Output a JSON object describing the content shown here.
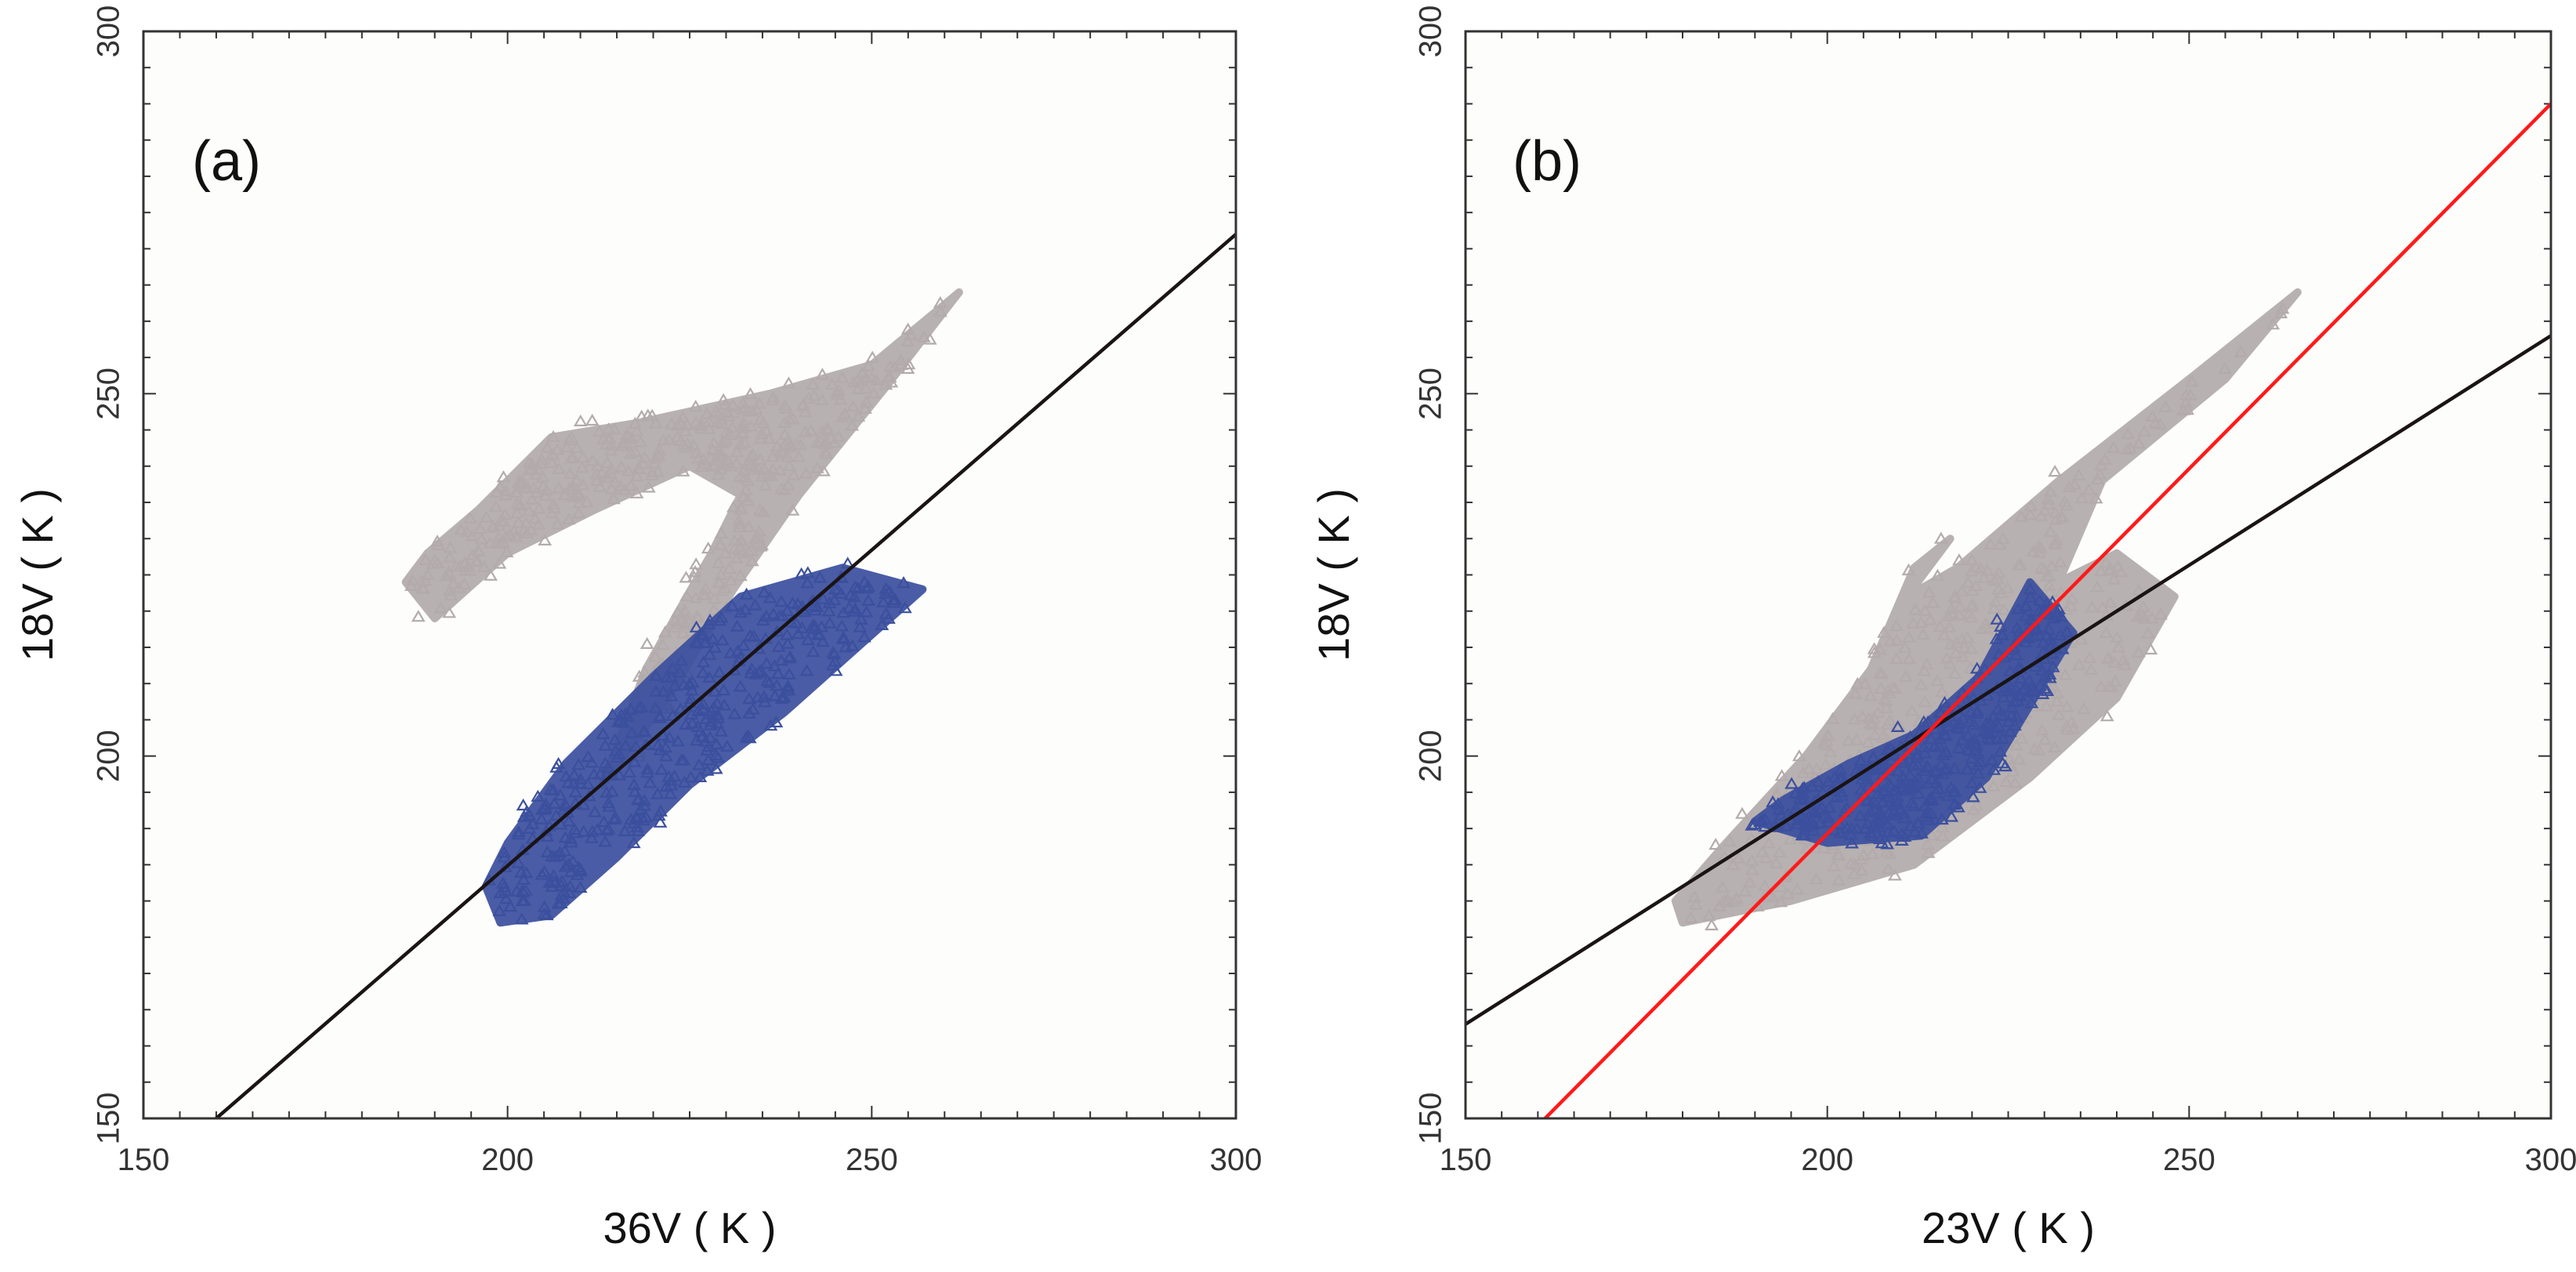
{
  "colors": {
    "gray_points": "#b3abab",
    "blue_points": "#3b4f9e",
    "black_line": "#1a1414",
    "red_line": "#ff1a1a",
    "plot_background": "#fdfdfb",
    "frame": "#333333"
  },
  "chart_data": [
    {
      "type": "scatter",
      "panel_label": "(a)",
      "xlabel": "36V ( K )",
      "ylabel": "18V ( K )",
      "xlim": [
        150,
        300
      ],
      "ylim": [
        150,
        300
      ],
      "xticks": [
        "150",
        "200",
        "250",
        "300"
      ],
      "yticks": [
        "150",
        "200",
        "250",
        "300"
      ],
      "series": [
        {
          "name": "gray triangles",
          "color": "#b3abab",
          "marker": "triangle-open",
          "region": [
            [
              186,
              224
            ],
            [
              190,
              219
            ],
            [
              200,
              228
            ],
            [
              212,
              234
            ],
            [
              225,
              240
            ],
            [
              232,
              236
            ],
            [
              228,
              228
            ],
            [
              219,
              212
            ],
            [
              213,
              196
            ],
            [
              222,
              208
            ],
            [
              231,
              223
            ],
            [
              240,
              236
            ],
            [
              252,
              251
            ],
            [
              262,
              264
            ],
            [
              250,
              254
            ],
            [
              236,
              250
            ],
            [
              218,
              246
            ],
            [
              206,
              244
            ],
            [
              196,
              234
            ],
            [
              189,
              228
            ]
          ]
        },
        {
          "name": "blue triangles",
          "color": "#3b4f9e",
          "marker": "triangle-open",
          "region": [
            [
              199,
              177
            ],
            [
              206,
              178
            ],
            [
              215,
              186
            ],
            [
              225,
              196
            ],
            [
              238,
              206
            ],
            [
              257,
              223
            ],
            [
              246,
              226
            ],
            [
              232,
              222
            ],
            [
              220,
              211
            ],
            [
              208,
              199
            ],
            [
              200,
              188
            ],
            [
              197,
              182
            ]
          ]
        }
      ],
      "lines": [
        {
          "name": "black line",
          "color": "#1a1414",
          "points": [
            [
              160,
              150
            ],
            [
              300,
              272
            ]
          ]
        }
      ]
    },
    {
      "type": "scatter",
      "panel_label": "(b)",
      "xlabel": "23V ( K )",
      "ylabel": "18V ( K )",
      "xlim": [
        150,
        300
      ],
      "ylim": [
        150,
        300
      ],
      "xticks": [
        "150",
        "200",
        "250",
        "300"
      ],
      "yticks": [
        "150",
        "200",
        "250",
        "300"
      ],
      "series": [
        {
          "name": "gray triangles",
          "color": "#b3abab",
          "marker": "triangle-open",
          "region": [
            [
              180,
              177
            ],
            [
              195,
              180
            ],
            [
              212,
              185
            ],
            [
              228,
              197
            ],
            [
              240,
              208
            ],
            [
              248,
              222
            ],
            [
              240,
              228
            ],
            [
              232,
              224
            ],
            [
              238,
              238
            ],
            [
              255,
              252
            ],
            [
              265,
              264
            ],
            [
              250,
              252
            ],
            [
              232,
              238
            ],
            [
              218,
              226
            ],
            [
              211,
              222
            ],
            [
              217,
              230
            ],
            [
              212,
              226
            ],
            [
              206,
              212
            ],
            [
              197,
              200
            ],
            [
              186,
              188
            ],
            [
              179,
              180
            ]
          ]
        },
        {
          "name": "blue triangles",
          "color": "#3b4f9e",
          "marker": "triangle-open",
          "region": [
            [
              190,
              191
            ],
            [
              200,
              188
            ],
            [
              213,
              189
            ],
            [
              222,
              197
            ],
            [
              234,
              217
            ],
            [
              228,
              224
            ],
            [
              221,
              211
            ],
            [
              212,
              203
            ],
            [
              203,
              199
            ],
            [
              194,
              194
            ]
          ]
        }
      ],
      "lines": [
        {
          "name": "black line",
          "color": "#1a1414",
          "points": [
            [
              150,
              163
            ],
            [
              300,
              258
            ]
          ]
        },
        {
          "name": "red line",
          "color": "#ff1a1a",
          "points": [
            [
              161,
              150
            ],
            [
              300,
              290
            ]
          ]
        }
      ]
    }
  ]
}
